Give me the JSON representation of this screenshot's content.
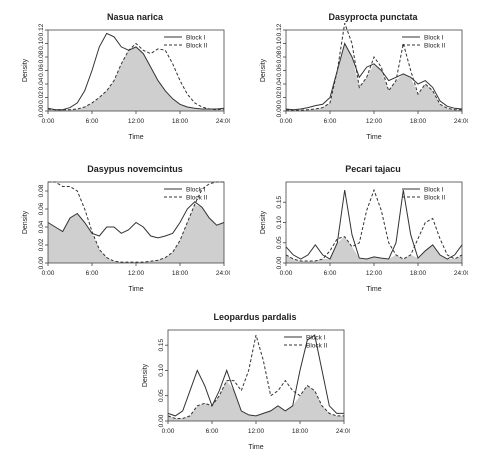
{
  "chart_data": [
    {
      "type": "area",
      "title": "Nasua narica",
      "xlabel": "Time",
      "ylabel": "Density",
      "xlim": [
        0,
        24
      ],
      "ylim": [
        0,
        0.12
      ],
      "x_ticks": [
        "0:00",
        "6:00",
        "12:00",
        "18:00",
        "24:00"
      ],
      "y_ticks": [
        "0.00",
        "0.02",
        "0.04",
        "0.06",
        "0.08",
        "0.10",
        "0.12"
      ],
      "legend": {
        "position": "top-right",
        "entries": [
          "Block I",
          "Block II"
        ]
      },
      "overlap_shaded": true,
      "x": [
        0,
        1,
        2,
        3,
        4,
        5,
        6,
        7,
        8,
        9,
        10,
        11,
        12,
        13,
        14,
        15,
        16,
        17,
        18,
        19,
        20,
        21,
        22,
        23,
        24
      ],
      "series": [
        {
          "name": "Block I",
          "line": "solid",
          "values": [
            0.004,
            0.002,
            0.002,
            0.005,
            0.012,
            0.03,
            0.06,
            0.095,
            0.115,
            0.11,
            0.095,
            0.09,
            0.095,
            0.085,
            0.065,
            0.045,
            0.03,
            0.018,
            0.01,
            0.006,
            0.004,
            0.003,
            0.003,
            0.003,
            0.004
          ]
        },
        {
          "name": "Block II",
          "line": "dashed",
          "values": [
            0.003,
            0.002,
            0.002,
            0.002,
            0.003,
            0.006,
            0.012,
            0.02,
            0.03,
            0.045,
            0.07,
            0.09,
            0.1,
            0.09,
            0.085,
            0.092,
            0.09,
            0.07,
            0.045,
            0.025,
            0.012,
            0.006,
            0.003,
            0.002,
            0.003
          ]
        }
      ]
    },
    {
      "type": "area",
      "title": "Dasyprocta punctata",
      "xlabel": "Time",
      "ylabel": "Density",
      "xlim": [
        0,
        24
      ],
      "ylim": [
        0,
        0.12
      ],
      "x_ticks": [
        "0:00",
        "6:00",
        "12:00",
        "18:00",
        "24:00"
      ],
      "y_ticks": [
        "0.00",
        "0.02",
        "0.04",
        "0.06",
        "0.08",
        "0.10",
        "0.12"
      ],
      "legend": {
        "position": "top-right",
        "entries": [
          "Block I",
          "Block II"
        ]
      },
      "overlap_shaded": true,
      "x": [
        0,
        1,
        2,
        3,
        4,
        5,
        6,
        7,
        8,
        9,
        10,
        11,
        12,
        13,
        14,
        15,
        16,
        17,
        18,
        19,
        20,
        21,
        22,
        23,
        24
      ],
      "series": [
        {
          "name": "Block I",
          "line": "solid",
          "values": [
            0.003,
            0.002,
            0.003,
            0.005,
            0.008,
            0.01,
            0.02,
            0.06,
            0.1,
            0.08,
            0.05,
            0.065,
            0.07,
            0.06,
            0.045,
            0.05,
            0.055,
            0.05,
            0.04,
            0.045,
            0.035,
            0.015,
            0.007,
            0.004,
            0.003
          ]
        },
        {
          "name": "Block II",
          "line": "dashed",
          "values": [
            0.002,
            0.001,
            0.001,
            0.002,
            0.003,
            0.005,
            0.012,
            0.06,
            0.13,
            0.1,
            0.035,
            0.05,
            0.08,
            0.065,
            0.03,
            0.045,
            0.1,
            0.06,
            0.025,
            0.04,
            0.03,
            0.01,
            0.004,
            0.002,
            0.002
          ]
        }
      ]
    },
    {
      "type": "area",
      "title": "Dasypus novemcintus",
      "xlabel": "Time",
      "ylabel": "Density",
      "xlim": [
        0,
        24
      ],
      "ylim": [
        0,
        0.09
      ],
      "x_ticks": [
        "0:00",
        "6:00",
        "12:00",
        "18:00",
        "24:00"
      ],
      "y_ticks": [
        "0.00",
        "0.02",
        "0.04",
        "0.06",
        "0.08"
      ],
      "legend": {
        "position": "top-right",
        "entries": [
          "Block I",
          "Block II"
        ]
      },
      "overlap_shaded": true,
      "x": [
        0,
        1,
        2,
        3,
        4,
        5,
        6,
        7,
        8,
        9,
        10,
        11,
        12,
        13,
        14,
        15,
        16,
        17,
        18,
        19,
        20,
        21,
        22,
        23,
        24
      ],
      "series": [
        {
          "name": "Block I",
          "line": "solid",
          "values": [
            0.045,
            0.04,
            0.035,
            0.05,
            0.055,
            0.045,
            0.033,
            0.03,
            0.04,
            0.04,
            0.033,
            0.037,
            0.045,
            0.04,
            0.03,
            0.028,
            0.03,
            0.033,
            0.045,
            0.06,
            0.068,
            0.062,
            0.05,
            0.042,
            0.045
          ]
        },
        {
          "name": "Block II",
          "line": "dashed",
          "values": [
            0.09,
            0.09,
            0.085,
            0.085,
            0.08,
            0.06,
            0.035,
            0.015,
            0.006,
            0.002,
            0.001,
            0.001,
            0.001,
            0.001,
            0.002,
            0.003,
            0.006,
            0.012,
            0.025,
            0.045,
            0.065,
            0.082,
            0.088,
            0.09,
            0.09
          ]
        }
      ]
    },
    {
      "type": "area",
      "title": "Pecari tajacu",
      "xlabel": "Time",
      "ylabel": "Density",
      "xlim": [
        0,
        24
      ],
      "ylim": [
        0,
        0.2
      ],
      "x_ticks": [
        "0:00",
        "6:00",
        "12:00",
        "18:00",
        "24:00"
      ],
      "y_ticks": [
        "0.00",
        "0.05",
        "0.10",
        "0.15"
      ],
      "legend": {
        "position": "top-right",
        "entries": [
          "Block I",
          "Block II"
        ]
      },
      "overlap_shaded": true,
      "x": [
        0,
        1,
        2,
        3,
        4,
        5,
        6,
        7,
        8,
        9,
        10,
        11,
        12,
        13,
        14,
        15,
        16,
        17,
        18,
        19,
        20,
        21,
        22,
        23,
        24
      ],
      "series": [
        {
          "name": "Block I",
          "line": "solid",
          "values": [
            0.04,
            0.02,
            0.01,
            0.02,
            0.045,
            0.02,
            0.01,
            0.05,
            0.18,
            0.07,
            0.012,
            0.01,
            0.015,
            0.012,
            0.01,
            0.05,
            0.18,
            0.07,
            0.012,
            0.03,
            0.045,
            0.02,
            0.01,
            0.02,
            0.045
          ]
        },
        {
          "name": "Block II",
          "line": "dashed",
          "values": [
            0.02,
            0.01,
            0.005,
            0.005,
            0.005,
            0.01,
            0.03,
            0.06,
            0.065,
            0.04,
            0.05,
            0.13,
            0.18,
            0.13,
            0.05,
            0.02,
            0.01,
            0.02,
            0.06,
            0.1,
            0.11,
            0.06,
            0.02,
            0.01,
            0.02
          ]
        }
      ]
    },
    {
      "type": "area",
      "title": "Leopardus pardalis",
      "xlabel": "Time",
      "ylabel": "Density",
      "xlim": [
        0,
        24
      ],
      "ylim": [
        0,
        0.18
      ],
      "x_ticks": [
        "0:00",
        "6:00",
        "12:00",
        "18:00",
        "24:00"
      ],
      "y_ticks": [
        "0.00",
        "0.05",
        "0.10",
        "0.15"
      ],
      "legend": {
        "position": "top-right",
        "entries": [
          "Block I",
          "Block II"
        ]
      },
      "overlap_shaded": true,
      "x": [
        0,
        1,
        2,
        3,
        4,
        5,
        6,
        7,
        8,
        9,
        10,
        11,
        12,
        13,
        14,
        15,
        16,
        17,
        18,
        19,
        20,
        21,
        22,
        23,
        24
      ],
      "series": [
        {
          "name": "Block I",
          "line": "solid",
          "values": [
            0.015,
            0.01,
            0.02,
            0.06,
            0.1,
            0.07,
            0.03,
            0.06,
            0.1,
            0.06,
            0.02,
            0.012,
            0.01,
            0.015,
            0.02,
            0.03,
            0.02,
            0.03,
            0.1,
            0.16,
            0.17,
            0.1,
            0.03,
            0.015,
            0.015
          ]
        },
        {
          "name": "Block II",
          "line": "dashed",
          "values": [
            0.01,
            0.005,
            0.005,
            0.01,
            0.03,
            0.035,
            0.03,
            0.05,
            0.08,
            0.08,
            0.06,
            0.1,
            0.17,
            0.12,
            0.05,
            0.06,
            0.08,
            0.06,
            0.05,
            0.07,
            0.06,
            0.03,
            0.015,
            0.01,
            0.01
          ]
        }
      ]
    }
  ]
}
